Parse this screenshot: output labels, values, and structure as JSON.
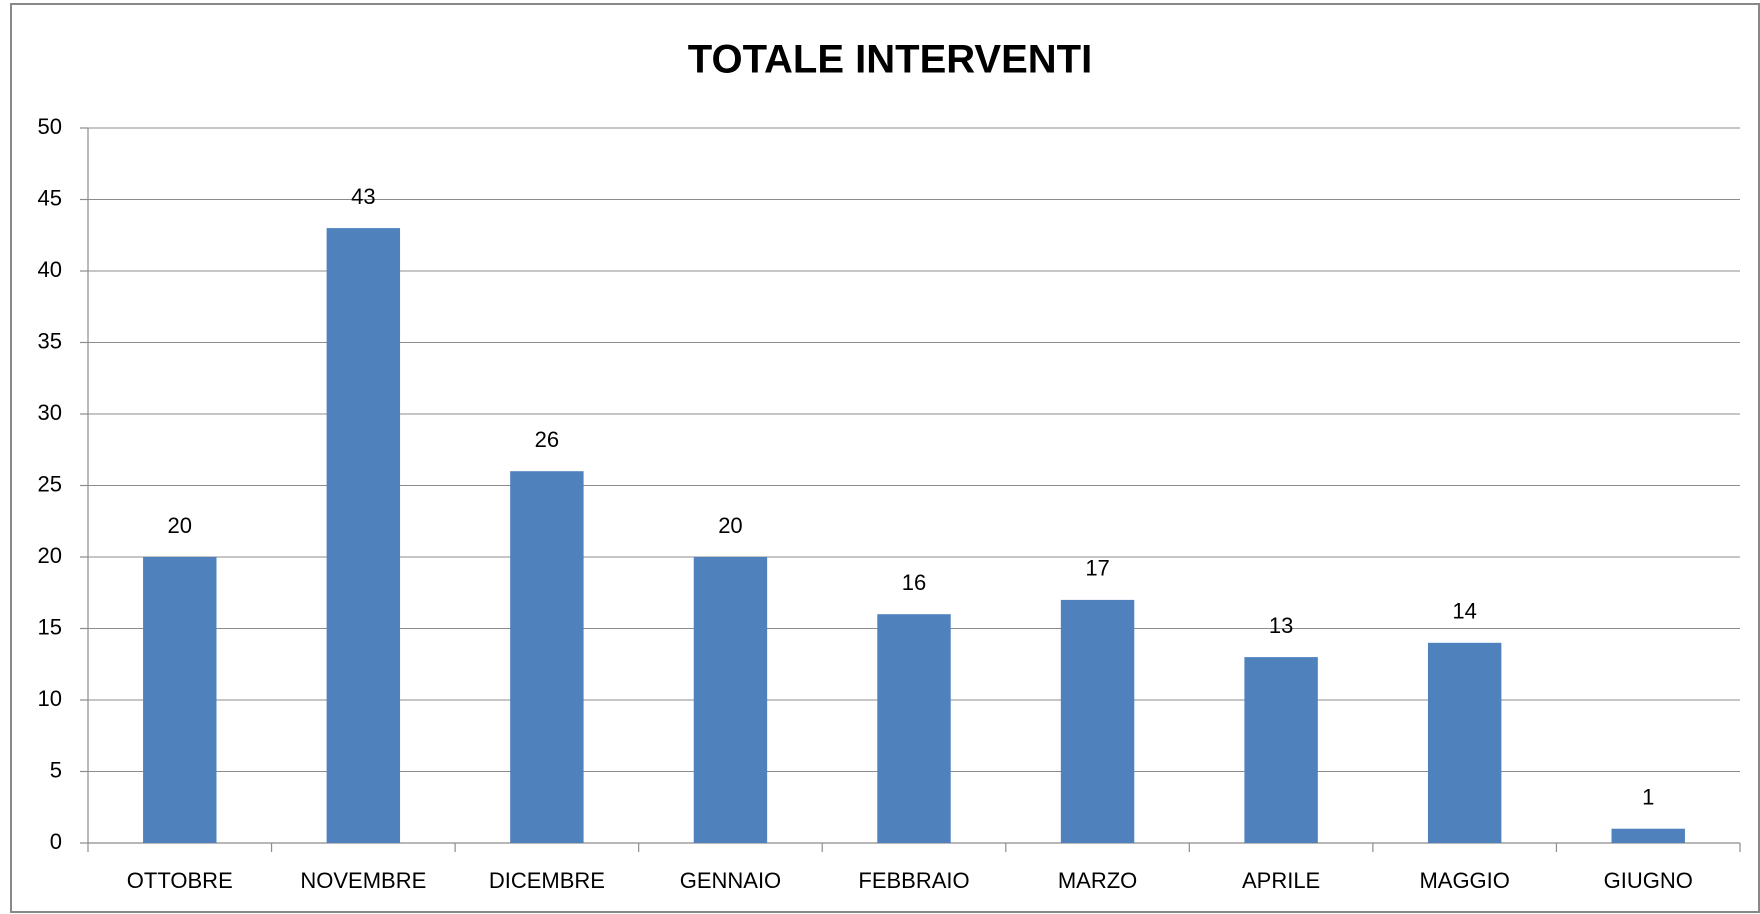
{
  "chart_data": {
    "type": "bar",
    "title": "TOTALE INTERVENTI",
    "categories": [
      "OTTOBRE",
      "NOVEMBRE",
      "DICEMBRE",
      "GENNAIO",
      "FEBBRAIO",
      "MARZO",
      "APRILE",
      "MAGGIO",
      "GIUGNO"
    ],
    "values": [
      20,
      43,
      26,
      20,
      16,
      17,
      13,
      14,
      1
    ],
    "color": "#4f81bd",
    "ylim": [
      0,
      50
    ],
    "yticks": [
      0,
      5,
      10,
      15,
      20,
      25,
      30,
      35,
      40,
      45,
      50
    ],
    "grid": true
  }
}
